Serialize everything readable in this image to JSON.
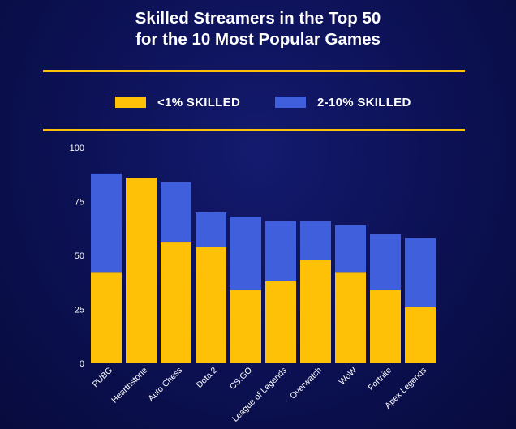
{
  "colors": {
    "primary": "#ffc107",
    "secondary": "#3f5fdc",
    "rule": "#ffc107",
    "text": "#ffffff"
  },
  "chart_data": {
    "type": "bar",
    "stacked": true,
    "title_lines": [
      "Skilled Streamers in the Top 50",
      "for the 10 Most Popular Games"
    ],
    "categories": [
      "PUBG",
      "Hearthstone",
      "Auto Chess",
      "Dota 2",
      "CS:GO",
      "League of Legends",
      "Overwatch",
      "WoW",
      "Fortnite",
      "Apex Legends"
    ],
    "series": [
      {
        "name": "<1% SKILLED",
        "color": "#ffc107",
        "values": [
          42,
          86,
          56,
          54,
          34,
          38,
          48,
          42,
          34,
          26
        ]
      },
      {
        "name": "2-10% SKILLED",
        "color": "#3f5fdc",
        "values": [
          46,
          0,
          28,
          16,
          34,
          28,
          18,
          22,
          26,
          32
        ]
      }
    ],
    "yticks": [
      0,
      25,
      50,
      75,
      100
    ],
    "ylim": [
      0,
      100
    ],
    "legend_position": "top",
    "grid": false
  }
}
